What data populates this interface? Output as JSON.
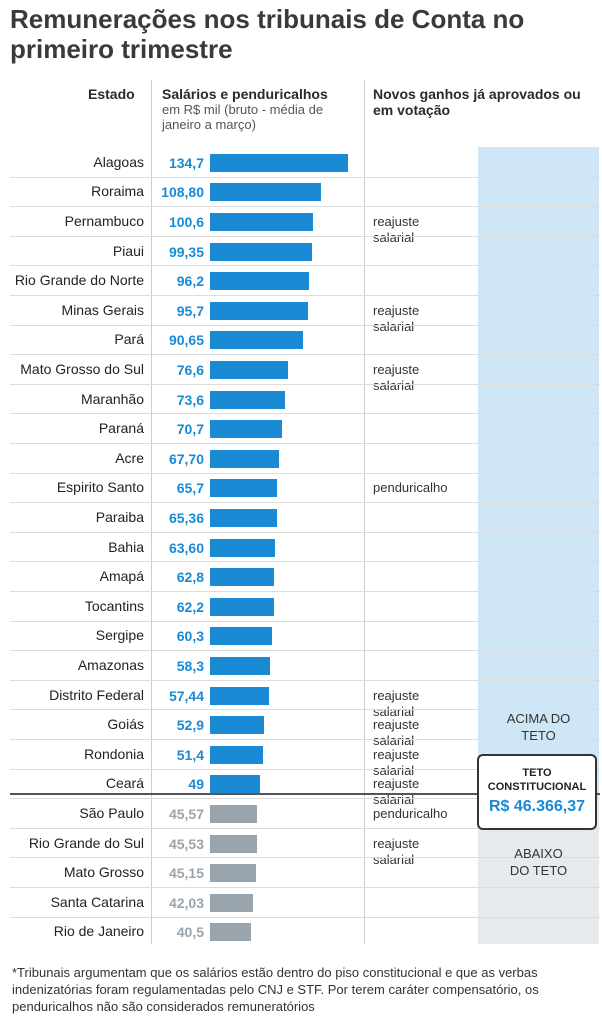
{
  "title": "Remunerações nos tribunais de Conta no primeiro trimestre",
  "headers": {
    "estado": "Estado",
    "salarios": "Salários e penduricalhos",
    "salarios_sub": "em R$ mil (bruto - média de janeiro a março)",
    "novos": "Novos ganhos já aprovados ou em votação"
  },
  "colors": {
    "above": "#1a8ad4",
    "below": "#9aa4ad",
    "above_bg": "#cfe6f7",
    "below_bg": "#e6eaed"
  },
  "zones": {
    "above": "ACIMA DO TETO",
    "below": "ABAIXO DO TETO"
  },
  "teto": {
    "label": "TETO CONSTITUCIONAL",
    "value": "R$ 46.366,37"
  },
  "footnote": "*Tribunais argumentam que os salários estão dentro do piso constitucional e que as verbas indenizatórias foram regulamentadas pelo CNJ e STF. Por terem caráter compensatório, os penduricalhos não são considerados remuneratórios",
  "chart_data": {
    "type": "bar",
    "orientation": "horizontal",
    "threshold": 46.37,
    "rows": [
      {
        "state": "Alagoas",
        "label": "134,7",
        "value": 134.7,
        "note": "",
        "above": true
      },
      {
        "state": "Roraima",
        "label": "108,80",
        "value": 108.8,
        "note": "",
        "above": true
      },
      {
        "state": "Pernambuco",
        "label": "100,6",
        "value": 100.6,
        "note": "reajuste salarial",
        "above": true
      },
      {
        "state": "Piaui",
        "label": "99,35",
        "value": 99.35,
        "note": "",
        "above": true
      },
      {
        "state": "Rio Grande do Norte",
        "label": "96,2",
        "value": 96.2,
        "note": "",
        "above": true
      },
      {
        "state": "Minas Gerais",
        "label": "95,7",
        "value": 95.7,
        "note": "reajuste salarial",
        "above": true
      },
      {
        "state": "Pará",
        "label": "90,65",
        "value": 90.65,
        "note": "",
        "above": true
      },
      {
        "state": "Mato Grosso do Sul",
        "label": "76,6",
        "value": 76.6,
        "note": "reajuste salarial",
        "above": true
      },
      {
        "state": "Maranhão",
        "label": "73,6",
        "value": 73.6,
        "note": "",
        "above": true
      },
      {
        "state": "Paraná",
        "label": "70,7",
        "value": 70.7,
        "note": "",
        "above": true
      },
      {
        "state": "Acre",
        "label": "67,70",
        "value": 67.7,
        "note": "",
        "above": true
      },
      {
        "state": "Espirito Santo",
        "label": "65,7",
        "value": 65.7,
        "note": "penduricalho",
        "above": true
      },
      {
        "state": "Paraiba",
        "label": "65,36",
        "value": 65.36,
        "note": "",
        "above": true
      },
      {
        "state": "Bahia",
        "label": "63,60",
        "value": 63.6,
        "note": "",
        "above": true
      },
      {
        "state": "Amapá",
        "label": "62,8",
        "value": 62.8,
        "note": "",
        "above": true
      },
      {
        "state": "Tocantins",
        "label": "62,2",
        "value": 62.2,
        "note": "",
        "above": true
      },
      {
        "state": "Sergipe",
        "label": "60,3",
        "value": 60.3,
        "note": "",
        "above": true
      },
      {
        "state": "Amazonas",
        "label": "58,3",
        "value": 58.3,
        "note": "",
        "above": true
      },
      {
        "state": "Distrito Federal",
        "label": "57,44",
        "value": 57.44,
        "note": "reajuste salarial",
        "above": true
      },
      {
        "state": "Goiás",
        "label": "52,9",
        "value": 52.9,
        "note": "reajuste salarial",
        "above": true
      },
      {
        "state": "Rondonia",
        "label": "51,4",
        "value": 51.4,
        "note": "reajuste salarial",
        "above": true
      },
      {
        "state": "Ceará",
        "label": "49",
        "value": 49,
        "note": "reajuste salarial",
        "above": true
      },
      {
        "state": "São Paulo",
        "label": "45,57",
        "value": 45.57,
        "note": "penduricalho",
        "above": false
      },
      {
        "state": "Rio Grande do Sul",
        "label": "45,53",
        "value": 45.53,
        "note": "reajuste salarial",
        "above": false
      },
      {
        "state": "Mato Grosso",
        "label": "45,15",
        "value": 45.15,
        "note": "",
        "above": false
      },
      {
        "state": "Santa Catarina",
        "label": "42,03",
        "value": 42.03,
        "note": "",
        "above": false
      },
      {
        "state": "Rio de Janeiro",
        "label": "40,5",
        "value": 40.5,
        "note": "",
        "above": false
      }
    ]
  }
}
